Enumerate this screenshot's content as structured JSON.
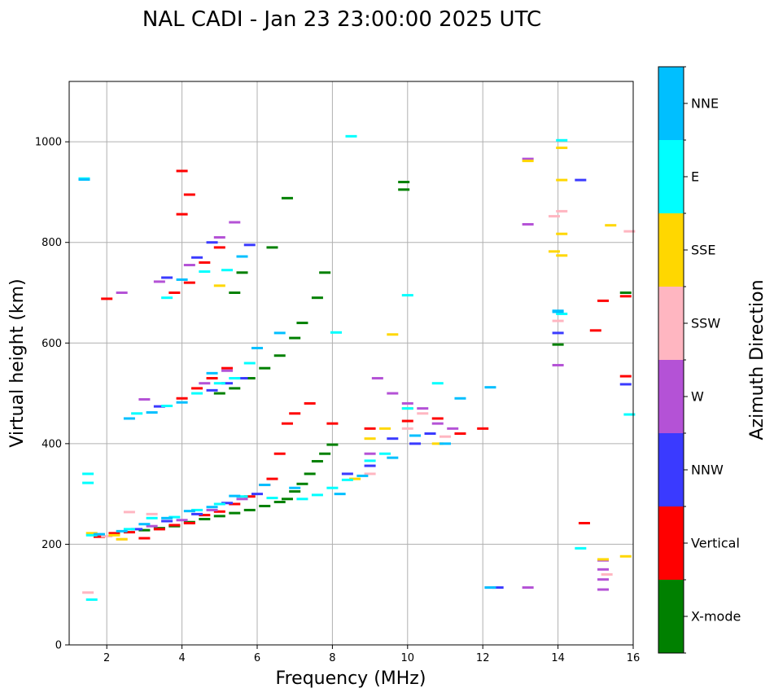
{
  "chart_data": {
    "type": "scatter",
    "title": "NAL CADI - Jan 23 23:00:00 2025 UTC",
    "xlabel": "Frequency (MHz)",
    "ylabel": "Virtual height (km)",
    "xlim": [
      1,
      16
    ],
    "ylim": [
      0,
      1120
    ],
    "xticks": [
      2,
      4,
      6,
      8,
      10,
      12,
      14,
      16
    ],
    "yticks": [
      0,
      200,
      400,
      600,
      800,
      1000
    ],
    "grid": true,
    "colorbar": {
      "title": "Azimuth Direction",
      "categories": [
        "X-mode",
        "Vertical",
        "NNW",
        "W",
        "SSW",
        "SSE",
        "E",
        "NNE"
      ],
      "colors": [
        "#008000",
        "#ff0000",
        "#3a3aff",
        "#b452d6",
        "#ffb6c1",
        "#ffd700",
        "#00ffff",
        "#00bfff"
      ]
    },
    "series": [
      {
        "name": "X-mode",
        "points": [
          [
            3.0,
            228
          ],
          [
            3.4,
            232
          ],
          [
            3.8,
            236
          ],
          [
            4.2,
            244
          ],
          [
            4.6,
            250
          ],
          [
            5.0,
            256
          ],
          [
            5.4,
            262
          ],
          [
            5.8,
            268
          ],
          [
            6.2,
            276
          ],
          [
            6.6,
            284
          ],
          [
            6.8,
            290
          ],
          [
            7.0,
            305
          ],
          [
            7.2,
            320
          ],
          [
            7.4,
            340
          ],
          [
            7.6,
            365
          ],
          [
            7.8,
            380
          ],
          [
            8.0,
            398
          ],
          [
            5.0,
            500
          ],
          [
            5.4,
            510
          ],
          [
            5.8,
            530
          ],
          [
            6.2,
            550
          ],
          [
            6.6,
            575
          ],
          [
            7.0,
            610
          ],
          [
            7.2,
            640
          ],
          [
            7.6,
            690
          ],
          [
            7.8,
            740
          ],
          [
            6.4,
            790
          ],
          [
            6.8,
            888
          ],
          [
            9.9,
            920
          ],
          [
            9.9,
            905
          ],
          [
            14.0,
            597
          ],
          [
            15.8,
            700
          ],
          [
            5.4,
            700
          ],
          [
            5.6,
            740
          ]
        ]
      },
      {
        "name": "Vertical",
        "points": [
          [
            1.8,
            215
          ],
          [
            2.2,
            222
          ],
          [
            2.6,
            224
          ],
          [
            3.0,
            212
          ],
          [
            3.4,
            230
          ],
          [
            3.8,
            238
          ],
          [
            4.2,
            242
          ],
          [
            4.6,
            258
          ],
          [
            5.0,
            265
          ],
          [
            5.4,
            280
          ],
          [
            5.8,
            295
          ],
          [
            6.2,
            318
          ],
          [
            6.4,
            330
          ],
          [
            6.6,
            380
          ],
          [
            6.8,
            440
          ],
          [
            7.0,
            460
          ],
          [
            7.4,
            480
          ],
          [
            8.0,
            440
          ],
          [
            9.0,
            430
          ],
          [
            10.0,
            445
          ],
          [
            10.8,
            450
          ],
          [
            11.4,
            420
          ],
          [
            12.0,
            430
          ],
          [
            4.0,
            490
          ],
          [
            4.4,
            510
          ],
          [
            4.8,
            530
          ],
          [
            5.2,
            550
          ],
          [
            3.8,
            700
          ],
          [
            4.2,
            720
          ],
          [
            4.6,
            760
          ],
          [
            5.0,
            790
          ],
          [
            4.0,
            856
          ],
          [
            4.2,
            895
          ],
          [
            4.0,
            942
          ],
          [
            2.0,
            688
          ],
          [
            14.7,
            242
          ],
          [
            15.0,
            625
          ],
          [
            15.2,
            684
          ],
          [
            15.8,
            534
          ],
          [
            15.8,
            693
          ]
        ]
      },
      {
        "name": "NNW",
        "points": [
          [
            2.8,
            230
          ],
          [
            3.6,
            246
          ],
          [
            4.4,
            260
          ],
          [
            5.2,
            282
          ],
          [
            6.0,
            300
          ],
          [
            8.4,
            340
          ],
          [
            9.0,
            356
          ],
          [
            9.6,
            410
          ],
          [
            10.2,
            400
          ],
          [
            10.6,
            420
          ],
          [
            3.4,
            474
          ],
          [
            4.8,
            506
          ],
          [
            5.2,
            520
          ],
          [
            5.6,
            530
          ],
          [
            3.6,
            730
          ],
          [
            4.4,
            770
          ],
          [
            4.8,
            800
          ],
          [
            5.8,
            795
          ],
          [
            12.4,
            114
          ],
          [
            14.6,
            924
          ],
          [
            15.8,
            518
          ],
          [
            14.0,
            620
          ]
        ]
      },
      {
        "name": "W",
        "points": [
          [
            3.2,
            236
          ],
          [
            4.0,
            248
          ],
          [
            4.8,
            268
          ],
          [
            5.6,
            290
          ],
          [
            9.0,
            380
          ],
          [
            9.2,
            530
          ],
          [
            9.6,
            500
          ],
          [
            10.0,
            480
          ],
          [
            10.4,
            470
          ],
          [
            10.8,
            440
          ],
          [
            11.2,
            430
          ],
          [
            3.0,
            488
          ],
          [
            4.6,
            520
          ],
          [
            5.2,
            545
          ],
          [
            3.4,
            722
          ],
          [
            4.2,
            755
          ],
          [
            5.0,
            810
          ],
          [
            5.4,
            840
          ],
          [
            12.2,
            114
          ],
          [
            13.2,
            114
          ],
          [
            15.2,
            110
          ],
          [
            15.2,
            130
          ],
          [
            15.2,
            150
          ],
          [
            15.2,
            168
          ],
          [
            13.2,
            836
          ],
          [
            13.2,
            966
          ],
          [
            14.0,
            556
          ],
          [
            2.4,
            700
          ]
        ]
      },
      {
        "name": "SSW",
        "points": [
          [
            2.0,
            216
          ],
          [
            2.4,
            210
          ],
          [
            2.6,
            264
          ],
          [
            3.2,
            260
          ],
          [
            9.0,
            340
          ],
          [
            10.0,
            430
          ],
          [
            10.4,
            460
          ],
          [
            11.0,
            414
          ],
          [
            13.9,
            852
          ],
          [
            14.1,
            862
          ],
          [
            14.0,
            644
          ],
          [
            15.9,
            822
          ],
          [
            1.5,
            104
          ],
          [
            15.3,
            140
          ]
        ]
      },
      {
        "name": "SSE",
        "points": [
          [
            1.6,
            222
          ],
          [
            2.2,
            218
          ],
          [
            2.4,
            210
          ],
          [
            8.6,
            330
          ],
          [
            9.0,
            410
          ],
          [
            9.4,
            430
          ],
          [
            9.6,
            617
          ],
          [
            10.0,
            470
          ],
          [
            10.8,
            400
          ],
          [
            13.2,
            962
          ],
          [
            14.1,
            988
          ],
          [
            14.1,
            924
          ],
          [
            14.1,
            817
          ],
          [
            14.1,
            774
          ],
          [
            13.9,
            782
          ],
          [
            15.2,
            170
          ],
          [
            15.8,
            176
          ],
          [
            15.4,
            834
          ],
          [
            5.0,
            714
          ]
        ]
      },
      {
        "name": "E",
        "points": [
          [
            1.6,
            218
          ],
          [
            2.6,
            230
          ],
          [
            3.2,
            252
          ],
          [
            3.8,
            254
          ],
          [
            4.4,
            268
          ],
          [
            5.0,
            280
          ],
          [
            5.6,
            295
          ],
          [
            6.4,
            292
          ],
          [
            7.2,
            290
          ],
          [
            7.6,
            298
          ],
          [
            8.0,
            312
          ],
          [
            8.4,
            328
          ],
          [
            9.0,
            366
          ],
          [
            9.4,
            380
          ],
          [
            10.0,
            470
          ],
          [
            10.8,
            520
          ],
          [
            2.8,
            460
          ],
          [
            3.6,
            475
          ],
          [
            4.4,
            500
          ],
          [
            5.0,
            520
          ],
          [
            5.4,
            530
          ],
          [
            5.8,
            560
          ],
          [
            3.6,
            690
          ],
          [
            4.6,
            742
          ],
          [
            5.2,
            745
          ],
          [
            1.5,
            340
          ],
          [
            1.5,
            322
          ],
          [
            1.6,
            90
          ],
          [
            1.4,
            927
          ],
          [
            8.5,
            1011
          ],
          [
            14.1,
            1003
          ],
          [
            14.1,
            658
          ],
          [
            14.6,
            192
          ],
          [
            15.9,
            458
          ],
          [
            10.0,
            695
          ],
          [
            8.1,
            621
          ]
        ]
      },
      {
        "name": "NNE",
        "points": [
          [
            1.8,
            220
          ],
          [
            2.4,
            226
          ],
          [
            3.0,
            240
          ],
          [
            3.6,
            252
          ],
          [
            4.2,
            266
          ],
          [
            4.8,
            274
          ],
          [
            5.4,
            296
          ],
          [
            6.2,
            318
          ],
          [
            7.0,
            312
          ],
          [
            8.2,
            300
          ],
          [
            8.8,
            336
          ],
          [
            9.6,
            372
          ],
          [
            10.2,
            416
          ],
          [
            11.0,
            400
          ],
          [
            11.4,
            490
          ],
          [
            12.2,
            512
          ],
          [
            2.6,
            450
          ],
          [
            3.2,
            462
          ],
          [
            4.0,
            482
          ],
          [
            4.8,
            540
          ],
          [
            6.0,
            590
          ],
          [
            6.6,
            620
          ],
          [
            4.0,
            726
          ],
          [
            5.6,
            772
          ],
          [
            1.4,
            925
          ],
          [
            12.2,
            114
          ],
          [
            14.0,
            664
          ],
          [
            14.0,
            662
          ]
        ]
      }
    ]
  }
}
